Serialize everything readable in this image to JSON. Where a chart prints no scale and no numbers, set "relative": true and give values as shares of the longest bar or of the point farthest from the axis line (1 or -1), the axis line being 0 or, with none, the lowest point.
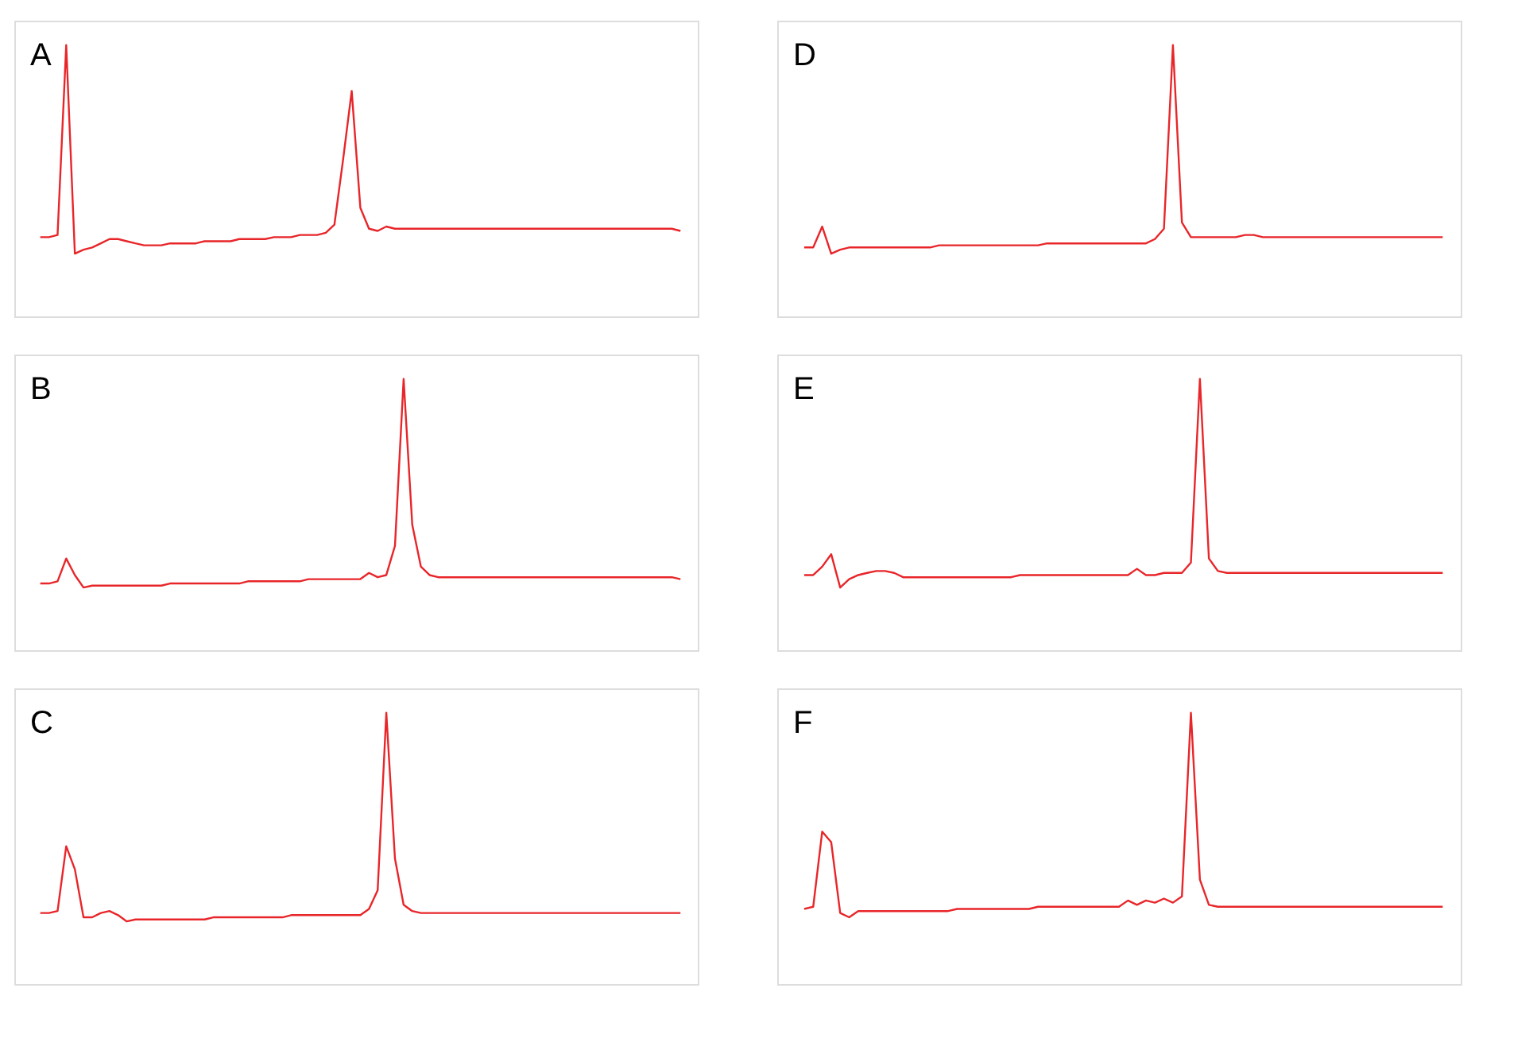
{
  "chart_data": [
    {
      "type": "line",
      "title": "A",
      "relative": true,
      "color": "#e8262a",
      "categories": [
        null,
        null,
        null,
        null,
        null,
        null,
        null,
        null,
        null,
        null,
        null,
        null,
        null,
        null,
        null,
        null,
        null,
        null,
        null,
        null,
        null,
        null,
        null,
        null,
        null,
        null,
        null,
        null,
        null,
        null,
        null,
        null,
        null,
        null,
        null,
        null,
        null,
        null,
        null,
        null,
        null,
        null,
        null,
        null,
        null,
        null,
        null,
        null,
        null,
        null,
        null,
        null,
        null,
        null,
        null,
        null,
        null,
        null,
        null,
        null,
        null,
        null,
        null,
        null,
        null,
        null,
        null,
        null,
        null,
        null,
        null,
        null,
        null,
        null,
        null
      ],
      "values": [
        0.292,
        0.292,
        0.3,
        1.0,
        0.231,
        0.246,
        0.254,
        0.269,
        0.285,
        0.285,
        0.277,
        0.269,
        0.262,
        0.262,
        0.262,
        0.269,
        0.269,
        0.269,
        0.269,
        0.277,
        0.277,
        0.277,
        0.277,
        0.285,
        0.285,
        0.285,
        0.285,
        0.292,
        0.292,
        0.292,
        0.3,
        0.3,
        0.3,
        0.308,
        0.338,
        0.577,
        0.831,
        0.4,
        0.323,
        0.315,
        0.331,
        0.323,
        0.323,
        0.323,
        0.323,
        0.323,
        0.323,
        0.323,
        0.323,
        0.323,
        0.323,
        0.323,
        0.323,
        0.323,
        0.323,
        0.323,
        0.323,
        0.323,
        0.323,
        0.323,
        0.323,
        0.323,
        0.323,
        0.323,
        0.323,
        0.323,
        0.323,
        0.323,
        0.323,
        0.323,
        0.323,
        0.323,
        0.323,
        0.323,
        0.315
      ]
    },
    {
      "type": "line",
      "title": "B",
      "relative": true,
      "color": "#e8262a",
      "categories": [
        null,
        null,
        null,
        null,
        null,
        null,
        null,
        null,
        null,
        null,
        null,
        null,
        null,
        null,
        null,
        null,
        null,
        null,
        null,
        null,
        null,
        null,
        null,
        null,
        null,
        null,
        null,
        null,
        null,
        null,
        null,
        null,
        null,
        null,
        null,
        null,
        null,
        null,
        null,
        null,
        null,
        null,
        null,
        null,
        null,
        null,
        null,
        null,
        null,
        null,
        null,
        null,
        null,
        null,
        null,
        null,
        null,
        null,
        null,
        null,
        null,
        null,
        null,
        null,
        null,
        null,
        null,
        null,
        null,
        null,
        null,
        null,
        null,
        null,
        null
      ],
      "values": [
        0.246,
        0.246,
        0.254,
        0.338,
        0.277,
        0.231,
        0.238,
        0.238,
        0.238,
        0.238,
        0.238,
        0.238,
        0.238,
        0.238,
        0.238,
        0.246,
        0.246,
        0.246,
        0.246,
        0.246,
        0.246,
        0.246,
        0.246,
        0.246,
        0.254,
        0.254,
        0.254,
        0.254,
        0.254,
        0.254,
        0.254,
        0.262,
        0.262,
        0.262,
        0.262,
        0.262,
        0.262,
        0.262,
        0.285,
        0.269,
        0.277,
        0.385,
        1.0,
        0.462,
        0.308,
        0.277,
        0.269,
        0.269,
        0.269,
        0.269,
        0.269,
        0.269,
        0.269,
        0.269,
        0.269,
        0.269,
        0.269,
        0.269,
        0.269,
        0.269,
        0.269,
        0.269,
        0.269,
        0.269,
        0.269,
        0.269,
        0.269,
        0.269,
        0.269,
        0.269,
        0.269,
        0.269,
        0.269,
        0.269,
        0.262
      ]
    },
    {
      "type": "line",
      "title": "C",
      "relative": true,
      "color": "#e8262a",
      "categories": [
        null,
        null,
        null,
        null,
        null,
        null,
        null,
        null,
        null,
        null,
        null,
        null,
        null,
        null,
        null,
        null,
        null,
        null,
        null,
        null,
        null,
        null,
        null,
        null,
        null,
        null,
        null,
        null,
        null,
        null,
        null,
        null,
        null,
        null,
        null,
        null,
        null,
        null,
        null,
        null,
        null,
        null,
        null,
        null,
        null,
        null,
        null,
        null,
        null,
        null,
        null,
        null,
        null,
        null,
        null,
        null,
        null,
        null,
        null,
        null,
        null,
        null,
        null,
        null,
        null,
        null,
        null,
        null,
        null,
        null,
        null,
        null,
        null,
        null,
        null
      ],
      "values": [
        0.262,
        0.262,
        0.269,
        0.508,
        0.423,
        0.246,
        0.246,
        0.262,
        0.269,
        0.254,
        0.231,
        0.238,
        0.238,
        0.238,
        0.238,
        0.238,
        0.238,
        0.238,
        0.238,
        0.238,
        0.246,
        0.246,
        0.246,
        0.246,
        0.246,
        0.246,
        0.246,
        0.246,
        0.246,
        0.254,
        0.254,
        0.254,
        0.254,
        0.254,
        0.254,
        0.254,
        0.254,
        0.254,
        0.277,
        0.346,
        1.0,
        0.462,
        0.292,
        0.269,
        0.262,
        0.262,
        0.262,
        0.262,
        0.262,
        0.262,
        0.262,
        0.262,
        0.262,
        0.262,
        0.262,
        0.262,
        0.262,
        0.262,
        0.262,
        0.262,
        0.262,
        0.262,
        0.262,
        0.262,
        0.262,
        0.262,
        0.262,
        0.262,
        0.262,
        0.262,
        0.262,
        0.262,
        0.262,
        0.262,
        0.262
      ]
    },
    {
      "type": "line",
      "title": "D",
      "relative": true,
      "color": "#e8262a",
      "categories": [
        null,
        null,
        null,
        null,
        null,
        null,
        null,
        null,
        null,
        null,
        null,
        null,
        null,
        null,
        null,
        null,
        null,
        null,
        null,
        null,
        null,
        null,
        null,
        null,
        null,
        null,
        null,
        null,
        null,
        null,
        null,
        null,
        null,
        null,
        null,
        null,
        null,
        null,
        null,
        null,
        null,
        null,
        null,
        null,
        null,
        null,
        null,
        null,
        null,
        null,
        null,
        null,
        null,
        null,
        null,
        null,
        null,
        null,
        null,
        null,
        null,
        null,
        null,
        null,
        null,
        null,
        null,
        null,
        null,
        null,
        null,
        null
      ],
      "values": [
        0.254,
        0.254,
        0.331,
        0.231,
        0.246,
        0.254,
        0.254,
        0.254,
        0.254,
        0.254,
        0.254,
        0.254,
        0.254,
        0.254,
        0.254,
        0.262,
        0.262,
        0.262,
        0.262,
        0.262,
        0.262,
        0.262,
        0.262,
        0.262,
        0.262,
        0.262,
        0.262,
        0.269,
        0.269,
        0.269,
        0.269,
        0.269,
        0.269,
        0.269,
        0.269,
        0.269,
        0.269,
        0.269,
        0.269,
        0.285,
        0.323,
        1.0,
        0.346,
        0.292,
        0.292,
        0.292,
        0.292,
        0.292,
        0.292,
        0.3,
        0.3,
        0.292,
        0.292,
        0.292,
        0.292,
        0.292,
        0.292,
        0.292,
        0.292,
        0.292,
        0.292,
        0.292,
        0.292,
        0.292,
        0.292,
        0.292,
        0.292,
        0.292,
        0.292,
        0.292,
        0.292,
        0.292
      ]
    },
    {
      "type": "line",
      "title": "E",
      "relative": true,
      "color": "#e8262a",
      "categories": [
        null,
        null,
        null,
        null,
        null,
        null,
        null,
        null,
        null,
        null,
        null,
        null,
        null,
        null,
        null,
        null,
        null,
        null,
        null,
        null,
        null,
        null,
        null,
        null,
        null,
        null,
        null,
        null,
        null,
        null,
        null,
        null,
        null,
        null,
        null,
        null,
        null,
        null,
        null,
        null,
        null,
        null,
        null,
        null,
        null,
        null,
        null,
        null,
        null,
        null,
        null,
        null,
        null,
        null,
        null,
        null,
        null,
        null,
        null,
        null,
        null,
        null,
        null,
        null,
        null,
        null,
        null,
        null,
        null,
        null,
        null,
        null
      ],
      "values": [
        0.277,
        0.277,
        0.308,
        0.354,
        0.231,
        0.262,
        0.277,
        0.285,
        0.292,
        0.292,
        0.285,
        0.269,
        0.269,
        0.269,
        0.269,
        0.269,
        0.269,
        0.269,
        0.269,
        0.269,
        0.269,
        0.269,
        0.269,
        0.269,
        0.277,
        0.277,
        0.277,
        0.277,
        0.277,
        0.277,
        0.277,
        0.277,
        0.277,
        0.277,
        0.277,
        0.277,
        0.277,
        0.3,
        0.277,
        0.277,
        0.285,
        0.285,
        0.285,
        0.323,
        1.0,
        0.338,
        0.292,
        0.285,
        0.285,
        0.285,
        0.285,
        0.285,
        0.285,
        0.285,
        0.285,
        0.285,
        0.285,
        0.285,
        0.285,
        0.285,
        0.285,
        0.285,
        0.285,
        0.285,
        0.285,
        0.285,
        0.285,
        0.285,
        0.285,
        0.285,
        0.285,
        0.285
      ]
    },
    {
      "type": "line",
      "title": "F",
      "relative": true,
      "color": "#e8262a",
      "categories": [
        null,
        null,
        null,
        null,
        null,
        null,
        null,
        null,
        null,
        null,
        null,
        null,
        null,
        null,
        null,
        null,
        null,
        null,
        null,
        null,
        null,
        null,
        null,
        null,
        null,
        null,
        null,
        null,
        null,
        null,
        null,
        null,
        null,
        null,
        null,
        null,
        null,
        null,
        null,
        null,
        null,
        null,
        null,
        null,
        null,
        null,
        null,
        null,
        null,
        null,
        null,
        null,
        null,
        null,
        null,
        null,
        null,
        null,
        null,
        null,
        null,
        null,
        null,
        null,
        null,
        null,
        null,
        null,
        null,
        null,
        null,
        null
      ],
      "values": [
        0.277,
        0.285,
        0.562,
        0.523,
        0.262,
        0.246,
        0.269,
        0.269,
        0.269,
        0.269,
        0.269,
        0.269,
        0.269,
        0.269,
        0.269,
        0.269,
        0.269,
        0.277,
        0.277,
        0.277,
        0.277,
        0.277,
        0.277,
        0.277,
        0.277,
        0.277,
        0.285,
        0.285,
        0.285,
        0.285,
        0.285,
        0.285,
        0.285,
        0.285,
        0.285,
        0.285,
        0.308,
        0.292,
        0.308,
        0.3,
        0.315,
        0.3,
        0.323,
        1.0,
        0.385,
        0.292,
        0.285,
        0.285,
        0.285,
        0.285,
        0.285,
        0.285,
        0.285,
        0.285,
        0.285,
        0.285,
        0.285,
        0.285,
        0.285,
        0.285,
        0.285,
        0.285,
        0.285,
        0.285,
        0.285,
        0.285,
        0.285,
        0.285,
        0.285,
        0.285,
        0.285,
        0.285
      ]
    }
  ]
}
